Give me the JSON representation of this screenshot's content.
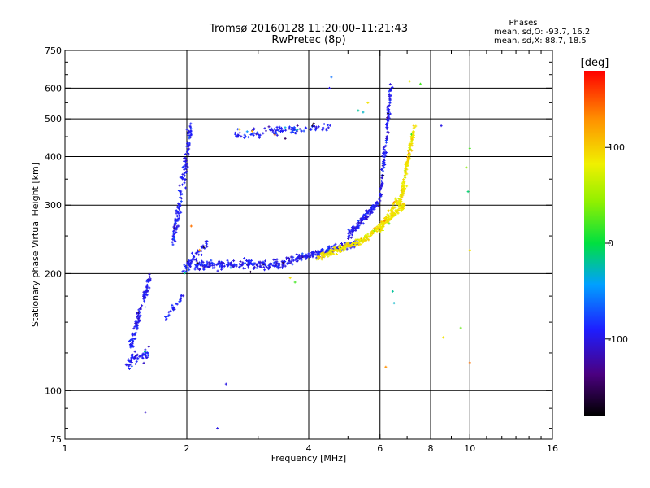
{
  "header": {
    "title_line1": "Tromsø 20160128 11:20:00–11:21:43",
    "title_line2": "RwPretec (8p)",
    "stats_title": "Phases",
    "stats_o": "mean, sd,O: -93.7, 16.2",
    "stats_x": "mean, sd,X:  88.7, 18.5"
  },
  "chart_data": {
    "type": "scatter",
    "xlabel": "Frequency [MHz]",
    "ylabel": "Stationary phase Virtual Height [km]",
    "x_scale": "log2",
    "y_scale": "log",
    "xlim": [
      1,
      16
    ],
    "ylim": [
      75,
      750
    ],
    "x_ticks": [
      1,
      2,
      4,
      6,
      8,
      10,
      16
    ],
    "x_tick_labels": [
      "1",
      "2",
      "4",
      "6",
      "8",
      "10",
      "16"
    ],
    "x_grid": [
      2,
      4,
      6,
      8,
      10
    ],
    "y_ticks": [
      75,
      100,
      200,
      300,
      400,
      500,
      600,
      750
    ],
    "y_tick_labels": [
      "75",
      "100",
      "200",
      "300",
      "400",
      "500",
      "600",
      "750"
    ],
    "y_grid": [
      100,
      200,
      300,
      400,
      500,
      600
    ],
    "grid": true,
    "colorbar": {
      "label": "[deg]",
      "range": [
        -180,
        180
      ],
      "ticks": [
        100,
        0,
        -100
      ],
      "tick_labels": [
        "100",
        "0",
        "-100"
      ]
    },
    "series": [
      {
        "id": "o-trace",
        "phase_deg": -94,
        "segments": [
          {
            "from": [
              1.42,
              118
            ],
            "to": [
              1.62,
              125
            ],
            "spread": 0.05,
            "count": 60
          },
          {
            "from": [
              1.45,
              130
            ],
            "to": [
              1.62,
              195
            ],
            "spread": 0.04,
            "count": 110
          },
          {
            "from": [
              1.75,
              150
            ],
            "to": [
              1.95,
              175
            ],
            "spread": 0.03,
            "count": 25
          },
          {
            "from": [
              1.85,
              240
            ],
            "to": [
              2.05,
              480
            ],
            "spread": 0.05,
            "count": 140
          },
          {
            "from": [
              1.95,
              205
            ],
            "to": [
              2.25,
              240
            ],
            "spread": 0.04,
            "count": 60
          },
          {
            "from": [
              2.1,
              210
            ],
            "to": [
              3.5,
              212
            ],
            "spread": 0.035,
            "count": 220
          },
          {
            "from": [
              3.5,
              215
            ],
            "to": [
              5.3,
              240
            ],
            "spread": 0.03,
            "count": 200
          },
          {
            "from": [
              2.6,
              455
            ],
            "to": [
              4.5,
              480
            ],
            "spread": 0.03,
            "count": 110
          },
          {
            "from": [
              5.0,
              250
            ],
            "to": [
              6.0,
              310
            ],
            "spread": 0.03,
            "count": 130
          },
          {
            "from": [
              6.0,
              310
            ],
            "to": [
              6.4,
              620
            ],
            "spread": 0.03,
            "count": 120
          }
        ]
      },
      {
        "id": "x-trace",
        "phase_deg": 89,
        "segments": [
          {
            "from": [
              4.2,
              220
            ],
            "to": [
              5.5,
              245
            ],
            "spread": 0.025,
            "count": 150
          },
          {
            "from": [
              5.5,
              245
            ],
            "to": [
              6.9,
              300
            ],
            "spread": 0.025,
            "count": 160
          },
          {
            "from": [
              6.7,
              300
            ],
            "to": [
              7.3,
              480
            ],
            "spread": 0.03,
            "count": 140
          },
          {
            "from": [
              6.0,
              260
            ],
            "to": [
              7.0,
              340
            ],
            "spread": 0.03,
            "count": 80
          }
        ]
      }
    ],
    "sparse_points": [
      {
        "x": 1.58,
        "y": 88,
        "phase": -110
      },
      {
        "x": 2.38,
        "y": 80,
        "phase": -100
      },
      {
        "x": 2.5,
        "y": 104,
        "phase": -100
      },
      {
        "x": 4.5,
        "y": 600,
        "phase": -100
      },
      {
        "x": 4.55,
        "y": 640,
        "phase": -60
      },
      {
        "x": 5.3,
        "y": 525,
        "phase": -20
      },
      {
        "x": 5.45,
        "y": 520,
        "phase": -30
      },
      {
        "x": 5.6,
        "y": 550,
        "phase": 90
      },
      {
        "x": 6.2,
        "y": 115,
        "phase": 130
      },
      {
        "x": 6.45,
        "y": 180,
        "phase": -20
      },
      {
        "x": 6.5,
        "y": 168,
        "phase": -30
      },
      {
        "x": 3.7,
        "y": 190,
        "phase": 20
      },
      {
        "x": 3.6,
        "y": 195,
        "phase": 90
      },
      {
        "x": 7.1,
        "y": 625,
        "phase": 80
      },
      {
        "x": 7.55,
        "y": 615,
        "phase": 20
      },
      {
        "x": 8.5,
        "y": 480,
        "phase": -100
      },
      {
        "x": 8.6,
        "y": 137,
        "phase": 90
      },
      {
        "x": 9.5,
        "y": 145,
        "phase": 30
      },
      {
        "x": 9.8,
        "y": 375,
        "phase": 40
      },
      {
        "x": 9.9,
        "y": 325,
        "phase": -10
      },
      {
        "x": 10.0,
        "y": 420,
        "phase": 20
      },
      {
        "x": 10.0,
        "y": 118,
        "phase": 140
      },
      {
        "x": 10.0,
        "y": 230,
        "phase": 90
      },
      {
        "x": 2.05,
        "y": 265,
        "phase": 140
      },
      {
        "x": 2.15,
        "y": 230,
        "phase": 130
      },
      {
        "x": 2.9,
        "y": 465,
        "phase": 120
      },
      {
        "x": 3.3,
        "y": 455,
        "phase": 140
      },
      {
        "x": 3.5,
        "y": 445,
        "phase": -150
      },
      {
        "x": 2.7,
        "y": 470,
        "phase": 100
      }
    ]
  }
}
